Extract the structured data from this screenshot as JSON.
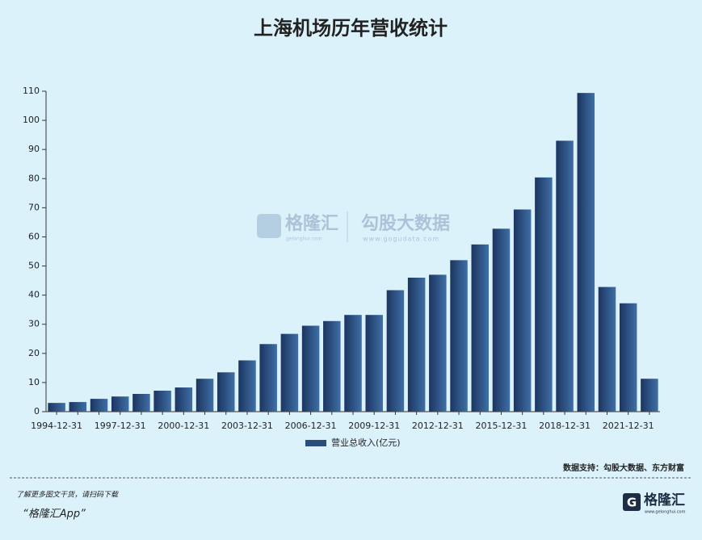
{
  "chart_data": {
    "type": "bar",
    "title": "上海机场历年营收统计",
    "categories": [
      "1994-12-31",
      null,
      null,
      "1997-12-31",
      null,
      null,
      "2000-12-31",
      null,
      null,
      "2003-12-31",
      null,
      null,
      "2006-12-31",
      null,
      null,
      "2009-12-31",
      null,
      null,
      "2012-12-31",
      null,
      null,
      "2015-12-31",
      null,
      null,
      "2018-12-31",
      null,
      null,
      "2021-12-31",
      null
    ],
    "series": [
      {
        "name": "营业总收入(亿元)",
        "color": "#2a4d7e",
        "values": [
          3.0,
          3.3,
          4.4,
          5.2,
          6.1,
          7.2,
          8.3,
          11.3,
          13.5,
          17.6,
          23.2,
          26.7,
          29.5,
          31.1,
          33.2,
          33.2,
          41.7,
          46.0,
          47.0,
          52.0,
          57.4,
          62.8,
          69.4,
          80.4,
          93.0,
          109.4,
          42.8,
          37.2,
          11.3
        ]
      }
    ],
    "ylim": [
      0,
      110
    ],
    "yticks": [
      0,
      10,
      20,
      30,
      40,
      50,
      60,
      70,
      80,
      90,
      100,
      110
    ],
    "grid": false,
    "legend": "bottom",
    "source": "数据支持：勾股大数据、东方财富",
    "watermark": {
      "brand": "格隆汇",
      "brand_url": "gelonghui.com",
      "partner": "勾股大数据",
      "partner_url": "www.gogudata.com"
    }
  },
  "footer": {
    "promo": "了解更多图文干货，请扫码下载",
    "app": "“格隆汇App”",
    "logo": "格隆汇",
    "logo_url": "www.gelonghui.com"
  }
}
